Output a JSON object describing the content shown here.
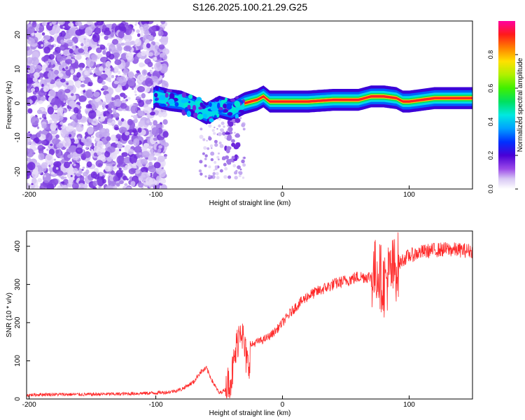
{
  "title": "S126.2025.100.21.29.G25",
  "colors": {
    "spectrum_low": "#d8c8f4",
    "spectrum_mid": "#7a2be6",
    "snr_line": "#ff2a2a"
  },
  "chart_data": [
    {
      "type": "heatmap",
      "title": "S126.2025.100.21.29.G25",
      "xlabel": "Height of straight line (km)",
      "ylabel": "Frequency (Hz)",
      "xlim": [
        -202,
        150
      ],
      "ylim": [
        -25,
        24
      ],
      "x_ticks": [
        -200,
        -100,
        0,
        100
      ],
      "y_ticks": [
        -20,
        -10,
        0,
        10,
        20
      ],
      "colorbar": {
        "label": "Normalized spectral amplitude",
        "range": [
          0,
          1
        ],
        "ticks": [
          "0.0",
          "0.2",
          "0.4",
          "0.6",
          "0.8"
        ]
      },
      "ridge": {
        "x": [
          -100,
          -90,
          -80,
          -70,
          -60,
          -50,
          -40,
          -30,
          -20,
          -15,
          -10,
          0,
          10,
          20,
          40,
          60,
          70,
          80,
          90,
          95,
          100,
          120,
          150
        ],
        "y": [
          2,
          1,
          0.5,
          -1,
          -3,
          -1,
          -2,
          0,
          1,
          2,
          0.5,
          0.5,
          0.5,
          0.5,
          1,
          1,
          2,
          2,
          1.5,
          0.5,
          0.5,
          1.5,
          1.5
        ]
      }
    },
    {
      "type": "line",
      "xlabel": "Height of straight line (km)",
      "ylabel": "SNR (10 * v/v)",
      "xlim": [
        -202,
        150
      ],
      "ylim": [
        0,
        440
      ],
      "x_ticks": [
        -200,
        -100,
        0,
        100
      ],
      "y_ticks": [
        0,
        100,
        200,
        300,
        400
      ],
      "series": [
        {
          "x": [
            -202,
            -190,
            -180,
            -170,
            -160,
            -150,
            -140,
            -130,
            -120,
            -110,
            -100,
            -90,
            -80,
            -70,
            -65,
            -60,
            -55,
            -50,
            -45,
            -40,
            -35,
            -33,
            -30,
            -27,
            -25,
            -20,
            -15,
            -10,
            -5,
            0,
            10,
            20,
            30,
            40,
            50,
            60,
            70,
            75,
            80,
            85,
            90,
            95,
            100,
            110,
            120,
            130,
            140,
            150
          ],
          "y": [
            10,
            12,
            12,
            12,
            12,
            12,
            13,
            13,
            14,
            15,
            16,
            18,
            25,
            45,
            70,
            80,
            45,
            15,
            25,
            60,
            160,
            200,
            130,
            80,
            140,
            150,
            155,
            165,
            180,
            200,
            240,
            270,
            285,
            300,
            310,
            320,
            320,
            340,
            300,
            330,
            345,
            365,
            375,
            385,
            390,
            392,
            390,
            388
          ]
        }
      ]
    }
  ]
}
